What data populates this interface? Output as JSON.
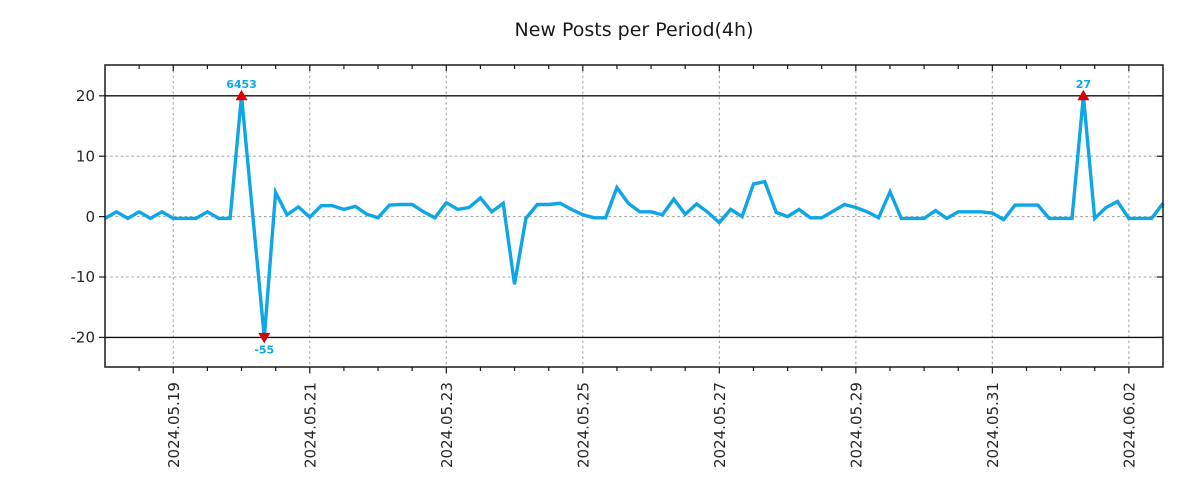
{
  "figure": {
    "background": "#ffffff"
  },
  "chart_data": {
    "type": "line",
    "title": "New Posts per Period(4h)",
    "xlabel": "",
    "ylabel": "",
    "grid": true,
    "legend_position": null,
    "x_start": "2024-05-18 00:00",
    "x_step_hours": 4,
    "values": [
      -0.3,
      0.8,
      -0.3,
      0.8,
      -0.3,
      0.8,
      -0.3,
      -0.3,
      -0.3,
      0.8,
      -0.3,
      -0.3,
      6453,
      0,
      -55,
      4.0,
      0.3,
      1.6,
      -0.1,
      1.8,
      1.8,
      1.2,
      1.7,
      0.4,
      -0.2,
      1.9,
      2.0,
      2.0,
      0.8,
      -0.2,
      2.3,
      1.2,
      1.5,
      3.1,
      0.8,
      2.2,
      -11.2,
      -0.3,
      2.0,
      2.0,
      2.2,
      1.2,
      0.3,
      -0.2,
      -0.2,
      4.8,
      2.2,
      0.8,
      0.8,
      0.3,
      2.9,
      0.4,
      2.1,
      0.7,
      -1.0,
      1.2,
      0.0,
      5.4,
      5.8,
      0.7,
      0.0,
      1.2,
      -0.2,
      -0.2,
      0.9,
      2.0,
      1.5,
      0.8,
      -0.2,
      4.1,
      -0.3,
      -0.3,
      -0.3,
      1.0,
      -0.3,
      0.8,
      0.8,
      0.8,
      0.6,
      -0.5,
      1.9,
      1.9,
      1.9,
      -0.3,
      -0.3,
      -0.3,
      27,
      -0.3,
      1.5,
      2.5,
      -0.3,
      -0.3,
      -0.3,
      2.2
    ],
    "x_axis": {
      "tick_labels": [
        "2024.05.19",
        "2024.05.21",
        "2024.05.23",
        "2024.05.25",
        "2024.05.27",
        "2024.05.29",
        "2024.05.31",
        "2024.06.02"
      ],
      "tick_data_indices": [
        6,
        18,
        30,
        42,
        54,
        66,
        78,
        90
      ],
      "minor_tick_every_indices": 3,
      "label_rotation_deg": 90
    },
    "y_axis": {
      "tick_values": [
        20,
        10,
        0,
        -10,
        -20
      ],
      "tick_labels": [
        "20",
        "10",
        "0",
        "-10",
        "-20"
      ],
      "ylim": [
        -24.9,
        25.1
      ],
      "clip_min": -20,
      "clip_max": 20
    },
    "annotations": [
      {
        "index": 12,
        "label": "6453",
        "direction": "up"
      },
      {
        "index": 14,
        "label": "-55",
        "direction": "down"
      },
      {
        "index": 86,
        "label": "27",
        "direction": "up"
      }
    ],
    "colors": {
      "line": "#0fa6e8",
      "marker": "#dd0000",
      "annotation_text": "#0fa6e8",
      "grid": "#a6a6a6",
      "threshold_line": "#111111",
      "axis": "#1a1a1a",
      "tick_label": "#262626",
      "title": "#1a1a1a",
      "background": "#ffffff"
    }
  }
}
